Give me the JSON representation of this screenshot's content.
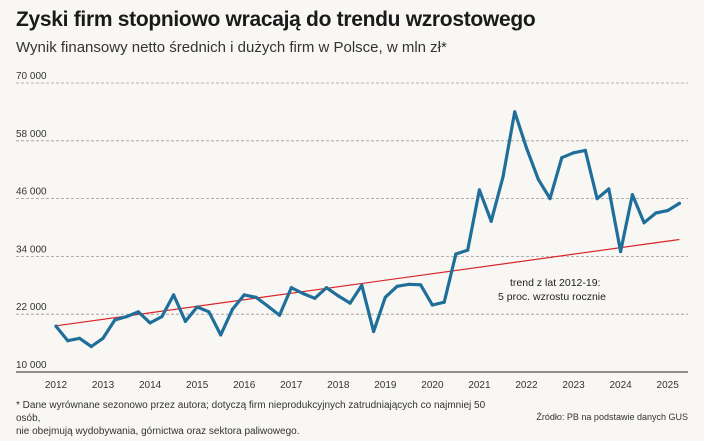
{
  "header": {
    "title": "Zyski firm stopniowo wracają do trendu wzrostowego",
    "subtitle": "Wynik finansowy netto średnich i dużych firm w Polsce, w mln zł*"
  },
  "footer": {
    "note_line1": "* Dane wyrównane sezonowo przez autora; dotyczą firm nieprodukcyjnych zatrudniających co najmniej 50 osób,",
    "note_line2": "nie obejmują wydobywania, górnictwa oraz sektora paliwowego.",
    "source": "Źródło: PB na podstawie danych GUS"
  },
  "chart_data": {
    "type": "line",
    "title": "Zyski firm stopniowo wracają do trendu wzrostowego",
    "subtitle": "Wynik finansowy netto średnich i dużych firm w Polsce, w mln zł*",
    "xlabel": "",
    "ylabel": "",
    "ylim": [
      10000,
      70000
    ],
    "xlim": [
      2012,
      2025.5
    ],
    "yticks": [
      10000,
      22000,
      34000,
      46000,
      58000,
      70000
    ],
    "ytick_labels": [
      "10 000",
      "22 000",
      "34 000",
      "46 000",
      "58 000",
      "70 000"
    ],
    "xticks": [
      2012,
      2013,
      2014,
      2015,
      2016,
      2017,
      2018,
      2019,
      2020,
      2021,
      2022,
      2023,
      2024,
      2025
    ],
    "xtick_labels": [
      "2012",
      "2013",
      "2014",
      "2015",
      "2016",
      "2017",
      "2018",
      "2019",
      "2020",
      "2021",
      "2022",
      "2023",
      "2024",
      "2025"
    ],
    "grid": "horizontal dashed",
    "colors": {
      "series": "#1f6f9a",
      "trend": "#d9262a",
      "grid": "#999999"
    },
    "series": [
      {
        "x": [
          2012.0,
          2012.25,
          2012.5,
          2012.75,
          2013.0,
          2013.25,
          2013.5,
          2013.75,
          2014.0,
          2014.25,
          2014.5,
          2014.75,
          2015.0,
          2015.25,
          2015.5,
          2015.75,
          2016.0,
          2016.25,
          2016.5,
          2016.75,
          2017.0,
          2017.25,
          2017.5,
          2017.75,
          2018.0,
          2018.25,
          2018.5,
          2018.75,
          2019.0,
          2019.25,
          2019.5,
          2019.75,
          2020.0,
          2020.25,
          2020.5,
          2020.75,
          2021.0,
          2021.25,
          2021.5,
          2021.75,
          2022.0,
          2022.25,
          2022.5,
          2022.75,
          2023.0,
          2023.25,
          2023.5,
          2023.75,
          2024.0,
          2024.25,
          2024.5,
          2024.75,
          2025.0,
          2025.25
        ],
        "values": [
          19500,
          16500,
          17000,
          15300,
          17000,
          20800,
          21500,
          22500,
          20200,
          21500,
          26000,
          20500,
          23500,
          22500,
          17700,
          23000,
          26000,
          25500,
          23700,
          21800,
          27500,
          26300,
          25300,
          27500,
          25800,
          24300,
          28000,
          18400,
          25500,
          27800,
          28200,
          28100,
          23900,
          24500,
          34500,
          35300,
          47800,
          41300,
          50500,
          64000,
          56500,
          50000,
          46000,
          54500,
          55500,
          56000,
          46000,
          48000,
          35000,
          46800,
          41000,
          43000,
          43500,
          45000
        ]
      },
      {
        "name": "trend z lat 2012-19: 5 proc. wzrostu rocznie",
        "x": [
          2012.0,
          2025.25
        ],
        "values": [
          19600,
          37500
        ]
      }
    ],
    "annotations": [
      {
        "text_line1": "trend z lat 2012-19:",
        "text_line2": "5 proc. wzrostu rocznie"
      }
    ]
  }
}
